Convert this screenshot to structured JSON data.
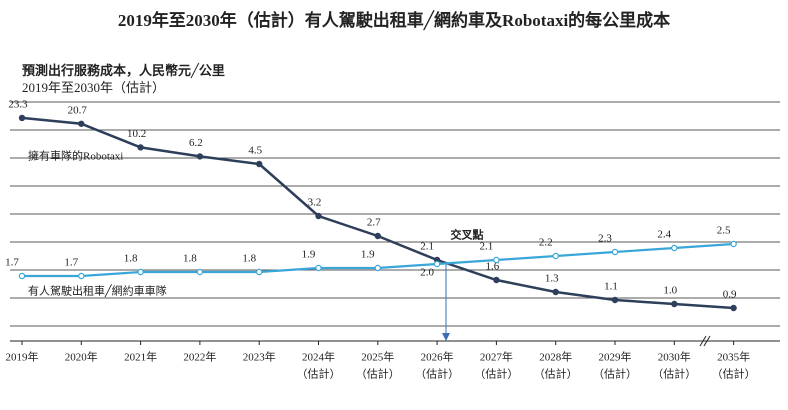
{
  "chart_data": {
    "type": "line",
    "title": "2019年至2030年（估計）有人駕駛出租車╱網約車及Robotaxi的每公里成本",
    "subtitle": "預測出行服務成本，人民幣元╱公里",
    "subtitle2": "2019年至2030年（估計）",
    "categories": [
      "2019年",
      "2020年",
      "2021年",
      "2022年",
      "2023年",
      "2024年",
      "2025年",
      "2026年",
      "2027年",
      "2028年",
      "2029年",
      "2030年",
      "2035年"
    ],
    "category_notes": [
      null,
      null,
      null,
      null,
      null,
      "（估計）",
      "（估計）",
      "（估計）",
      "（估計）",
      "（估計）",
      "（估計）",
      "（估計）",
      "（估計）"
    ],
    "series": [
      {
        "name": "擁有車隊的Robotaxi",
        "color": "#2e3f5c",
        "values": [
          23.3,
          20.7,
          10.2,
          6.2,
          4.5,
          3.2,
          2.7,
          2.1,
          1.6,
          1.3,
          1.1,
          1.0,
          0.9
        ],
        "value_labels": [
          "23.3",
          "20.7",
          "10.2",
          "6.2",
          "4.5",
          "3.2",
          "2.7",
          "2.1",
          "1.6",
          "1.3",
          "1.1",
          "1.0",
          "0.9"
        ]
      },
      {
        "name": "有人駕駛出租車╱網約車車隊",
        "color": "#3aa6d8",
        "values": [
          1.7,
          1.7,
          1.8,
          1.8,
          1.8,
          1.9,
          1.9,
          2.0,
          2.1,
          2.2,
          2.3,
          2.4,
          2.5
        ],
        "value_labels": [
          "1.7",
          "1.7",
          "1.8",
          "1.8",
          "1.8",
          "1.9",
          "1.9",
          "2.0",
          "2.1",
          "2.2",
          "2.3",
          "2.4",
          "2.5"
        ]
      }
    ],
    "annotation": "交叉點"
  }
}
